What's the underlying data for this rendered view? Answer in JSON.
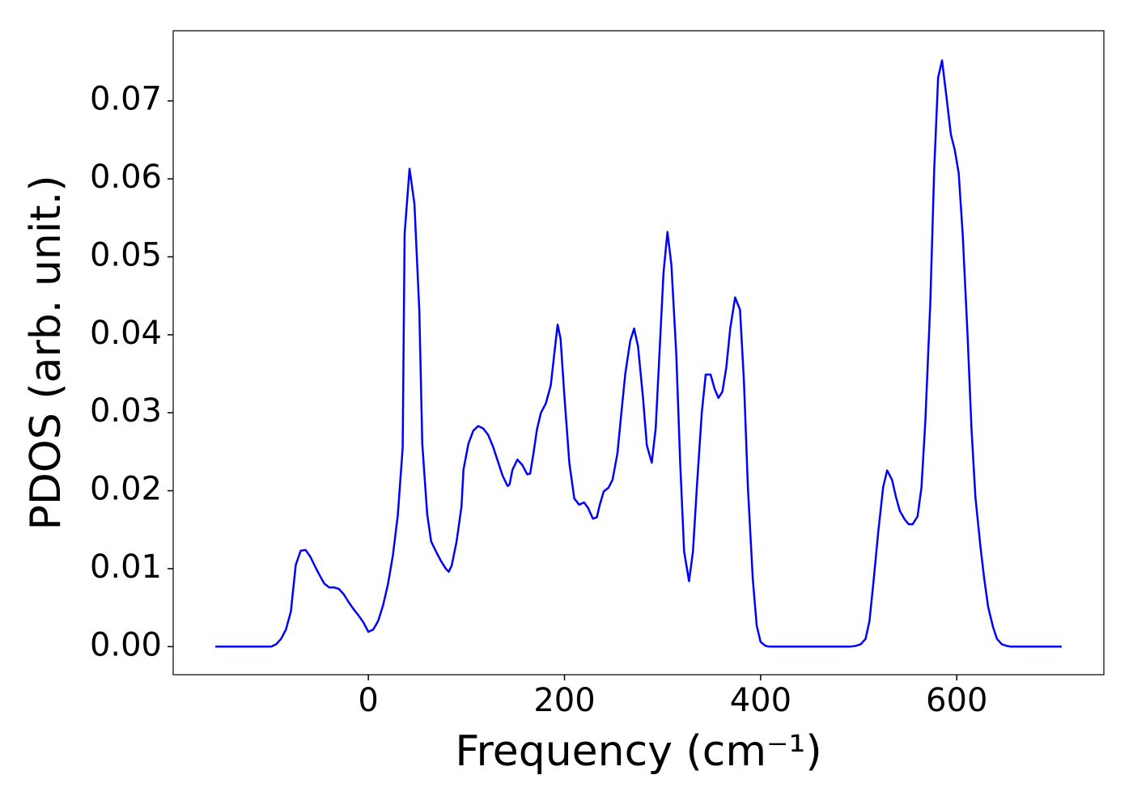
{
  "chart_data": {
    "type": "line",
    "xlabel": "Frequency (cm⁻¹)",
    "ylabel": "PDOS (arb. unit.)",
    "xlim": [
      -199,
      750
    ],
    "ylim": [
      -0.0036,
      0.079
    ],
    "xticks": [
      0,
      200,
      400,
      600
    ],
    "yticks": [
      {
        "value": 0,
        "label": "0.00"
      },
      0.01,
      0.02,
      0.03,
      0.04,
      0.05,
      0.06,
      0.07
    ],
    "x": [
      -156,
      -99,
      -94,
      -89,
      -84,
      -79,
      -74,
      -69,
      -64,
      -59,
      -54,
      -49,
      -45,
      -40,
      -35,
      -30,
      -25,
      -20,
      -15,
      -10,
      -5,
      0,
      5,
      10,
      15,
      20,
      25,
      30,
      35,
      37,
      42,
      47,
      52,
      55,
      60,
      64,
      69,
      74,
      79,
      82,
      85,
      90,
      95,
      97,
      102,
      107,
      112,
      117,
      122,
      127,
      132,
      137,
      142,
      144,
      147,
      152,
      157,
      162,
      165,
      168,
      172,
      176,
      181,
      186,
      190,
      193,
      196,
      200,
      205,
      210,
      215,
      220,
      224,
      229,
      233,
      236,
      240,
      245,
      249,
      254,
      258,
      262,
      267,
      271,
      275,
      280,
      284,
      289,
      293,
      297,
      301,
      305,
      309,
      314,
      318,
      322,
      327,
      331,
      335,
      340,
      344,
      349,
      353,
      357,
      361,
      365,
      369,
      374,
      379,
      383,
      387,
      392,
      396,
      400,
      405,
      409,
      491,
      497,
      502,
      507,
      511,
      515,
      520,
      525,
      529,
      534,
      538,
      542,
      547,
      551,
      555,
      560,
      564,
      568,
      573,
      577,
      581,
      585,
      590,
      594,
      598,
      602,
      606,
      611,
      615,
      619,
      624,
      628,
      632,
      637,
      641,
      646,
      651,
      655,
      707
    ],
    "series": [
      {
        "name": "PDOS",
        "color": "#0000ff",
        "values": [
          0,
          0,
          0.0003,
          0.001,
          0.0022,
          0.0045,
          0.0105,
          0.0123,
          0.0124,
          0.0115,
          0.0102,
          0.009,
          0.0081,
          0.0076,
          0.0076,
          0.0074,
          0.0067,
          0.0057,
          0.0048,
          0.004,
          0.0031,
          0.0019,
          0.0022,
          0.0033,
          0.0053,
          0.008,
          0.0117,
          0.0168,
          0.0255,
          0.053,
          0.0613,
          0.0568,
          0.043,
          0.026,
          0.017,
          0.0135,
          0.0122,
          0.011,
          0.01,
          0.0096,
          0.0104,
          0.0135,
          0.018,
          0.0227,
          0.026,
          0.0277,
          0.0283,
          0.028,
          0.0272,
          0.0257,
          0.0238,
          0.0219,
          0.0206,
          0.0208,
          0.0227,
          0.024,
          0.0233,
          0.0221,
          0.0222,
          0.0245,
          0.0279,
          0.03,
          0.0312,
          0.0335,
          0.038,
          0.0413,
          0.0395,
          0.032,
          0.0235,
          0.019,
          0.0182,
          0.0185,
          0.0178,
          0.0164,
          0.0166,
          0.0182,
          0.0199,
          0.0204,
          0.0214,
          0.0248,
          0.03,
          0.035,
          0.0392,
          0.0408,
          0.0385,
          0.032,
          0.0258,
          0.0236,
          0.028,
          0.038,
          0.048,
          0.0532,
          0.049,
          0.0375,
          0.0235,
          0.0122,
          0.0084,
          0.0122,
          0.0205,
          0.03,
          0.0349,
          0.0349,
          0.0331,
          0.0319,
          0.0327,
          0.0358,
          0.0408,
          0.0448,
          0.0432,
          0.034,
          0.0205,
          0.0087,
          0.0027,
          0.0006,
          0.0001,
          0,
          0,
          0.0001,
          0.0003,
          0.001,
          0.0033,
          0.0082,
          0.0148,
          0.0205,
          0.0226,
          0.0214,
          0.0192,
          0.0174,
          0.0163,
          0.0157,
          0.0157,
          0.0167,
          0.0204,
          0.029,
          0.044,
          0.0612,
          0.073,
          0.0752,
          0.07,
          0.0657,
          0.0637,
          0.0607,
          0.053,
          0.04,
          0.028,
          0.0192,
          0.013,
          0.0087,
          0.0051,
          0.0025,
          0.001,
          0.0003,
          0.0001,
          0,
          0
        ]
      }
    ]
  }
}
